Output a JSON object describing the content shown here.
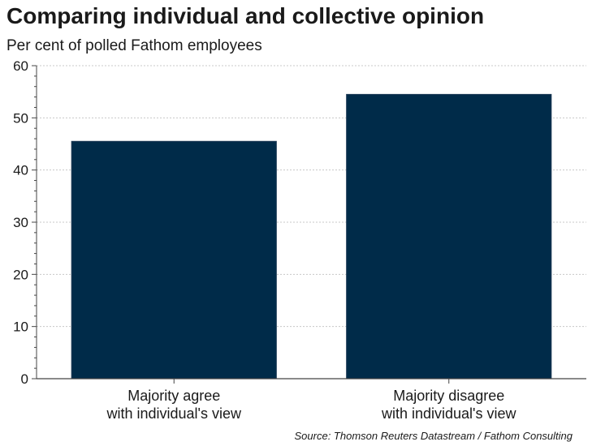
{
  "chart_data": {
    "type": "bar",
    "title": "Comparing individual and collective opinion",
    "subtitle": "Per cent of polled Fathom employees",
    "categories": [
      [
        "Majority agree",
        "with individual's view"
      ],
      [
        "Majority disagree",
        "with individual's view"
      ]
    ],
    "values": [
      45.5,
      54.5
    ],
    "ylim": [
      0,
      60
    ],
    "yticks": [
      0,
      10,
      20,
      30,
      40,
      50,
      60
    ],
    "grid": true,
    "bar_color": "#002b49",
    "source": "Source: Thomson Reuters Datastream / Fathom Consulting"
  }
}
